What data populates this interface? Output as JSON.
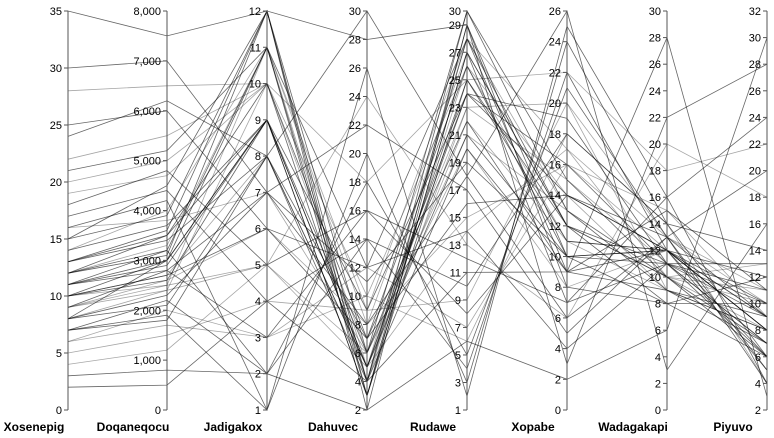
{
  "chart_data": {
    "type": "parallel-coordinates",
    "title": "",
    "line_color": "#000000",
    "axes": [
      {
        "name": "Xosenepig",
        "min": 0,
        "max": 35,
        "ticks": [
          0,
          5,
          10,
          15,
          20,
          25,
          30,
          35
        ],
        "tick_labels": [
          "0",
          "5",
          "10",
          "15",
          "20",
          "25",
          "30",
          "35"
        ],
        "label_side": "left"
      },
      {
        "name": "Doqaneqocu",
        "min": 0,
        "max": 8000,
        "ticks": [
          0,
          1000,
          2000,
          3000,
          4000,
          5000,
          6000,
          7000,
          8000
        ],
        "tick_labels": [
          "0",
          "1,000",
          "2,000",
          "3,000",
          "4,000",
          "5,000",
          "6,000",
          "7,000",
          "8,000"
        ],
        "label_side": "left"
      },
      {
        "name": "Jadigakox",
        "min": 1,
        "max": 12,
        "ticks": [
          1,
          2,
          3,
          4,
          5,
          6,
          7,
          8,
          9,
          10,
          11,
          12
        ],
        "tick_labels": [
          "1",
          "2",
          "3",
          "4",
          "5",
          "6",
          "7",
          "8",
          "9",
          "10",
          "11",
          "12"
        ],
        "label_side": "left"
      },
      {
        "name": "Dahuvec",
        "min": 2,
        "max": 30,
        "ticks": [
          2,
          4,
          6,
          8,
          10,
          12,
          14,
          16,
          18,
          20,
          22,
          24,
          26,
          28,
          30
        ],
        "tick_labels": [
          "2",
          "4",
          "6",
          "8",
          "10",
          "12",
          "14",
          "16",
          "18",
          "20",
          "22",
          "24",
          "26",
          "28",
          "30"
        ],
        "label_side": "left"
      },
      {
        "name": "Rudawe",
        "min": 1,
        "max": 30,
        "ticks": [
          1,
          3,
          5,
          7,
          9,
          11,
          13,
          15,
          17,
          19,
          21,
          23,
          25,
          27,
          29,
          30
        ],
        "tick_labels": [
          "1",
          "3",
          "5",
          "7",
          "9",
          "11",
          "13",
          "15",
          "17",
          "19",
          "21",
          "23",
          "25",
          "27",
          "29",
          "30"
        ],
        "label_side": "left"
      },
      {
        "name": "Xopabe",
        "min": 0,
        "max": 26,
        "ticks": [
          0,
          2,
          4,
          6,
          8,
          10,
          12,
          14,
          16,
          18,
          20,
          22,
          24,
          26
        ],
        "tick_labels": [
          "0",
          "2",
          "4",
          "6",
          "8",
          "10",
          "12",
          "14",
          "16",
          "18",
          "20",
          "22",
          "24",
          "26"
        ],
        "label_side": "left"
      },
      {
        "name": "Wadagakapi",
        "min": 0,
        "max": 30,
        "ticks": [
          0,
          2,
          4,
          6,
          8,
          10,
          12,
          14,
          16,
          18,
          20,
          22,
          24,
          26,
          28,
          30
        ],
        "tick_labels": [
          "0",
          "2",
          "4",
          "6",
          "8",
          "10",
          "12",
          "14",
          "16",
          "18",
          "20",
          "22",
          "24",
          "26",
          "28",
          "30"
        ],
        "label_side": "left"
      },
      {
        "name": "Piyuvo",
        "min": 2,
        "max": 32,
        "ticks": [
          2,
          4,
          6,
          8,
          10,
          12,
          14,
          16,
          18,
          20,
          22,
          24,
          26,
          28,
          30,
          32
        ],
        "tick_labels": [
          "2",
          "4",
          "6",
          "8",
          "10",
          "12",
          "14",
          "16",
          "18",
          "20",
          "22",
          "24",
          "26",
          "28",
          "30",
          "32"
        ],
        "label_side": "left"
      }
    ],
    "records": [
      [
        10,
        2500,
        5,
        6,
        20,
        8,
        12,
        8
      ],
      [
        8,
        3000,
        11,
        3,
        27,
        12,
        10,
        6
      ],
      [
        12,
        3500,
        9,
        5,
        24,
        16,
        11,
        10
      ],
      [
        6,
        2000,
        3,
        10,
        6,
        18,
        14,
        4
      ],
      [
        15,
        4500,
        12,
        2,
        29,
        10,
        8,
        12
      ],
      [
        9,
        2800,
        7,
        8,
        18,
        6,
        13,
        9
      ],
      [
        20,
        5000,
        10,
        4,
        26,
        14,
        9,
        7
      ],
      [
        11,
        3200,
        2,
        14,
        4,
        22,
        12,
        5
      ],
      [
        7,
        1800,
        8,
        7,
        22,
        9,
        15,
        11
      ],
      [
        14,
        4000,
        11,
        5,
        28,
        17,
        10,
        8
      ],
      [
        25,
        6000,
        6,
        12,
        14,
        4,
        11,
        13
      ],
      [
        10,
        2600,
        9,
        3,
        25,
        11,
        12,
        6
      ],
      [
        5,
        1500,
        4,
        9,
        9,
        20,
        13,
        10
      ],
      [
        13,
        3600,
        12,
        6,
        30,
        13,
        9,
        9
      ],
      [
        18,
        4800,
        5,
        16,
        12,
        7,
        16,
        4
      ],
      [
        9,
        2400,
        10,
        4,
        23,
        15,
        11,
        7
      ],
      [
        16,
        4200,
        1,
        20,
        3,
        24,
        14,
        14
      ],
      [
        8,
        2100,
        8,
        5,
        21,
        10,
        12,
        8
      ],
      [
        12,
        3300,
        11,
        8,
        27,
        12,
        10,
        11
      ],
      [
        30,
        7000,
        7,
        22,
        17,
        5,
        13,
        20
      ],
      [
        11,
        2900,
        9,
        6,
        24,
        19,
        11,
        6
      ],
      [
        6,
        1700,
        3,
        12,
        7,
        16,
        15,
        9
      ],
      [
        15,
        3900,
        12,
        3,
        29,
        8,
        8,
        10
      ],
      [
        10,
        2700,
        6,
        7,
        16,
        14,
        12,
        12
      ],
      [
        22,
        5500,
        10,
        10,
        26,
        11,
        9,
        7
      ],
      [
        7,
        2200,
        2,
        18,
        5,
        21,
        13,
        5
      ],
      [
        13,
        3400,
        8,
        4,
        20,
        9,
        12,
        8
      ],
      [
        9,
        2500,
        11,
        9,
        28,
        13,
        10,
        13
      ],
      [
        17,
        4400,
        4,
        14,
        10,
        18,
        14,
        6
      ],
      [
        10,
        3000,
        9,
        5,
        25,
        12,
        11,
        9
      ],
      [
        4,
        1200,
        5,
        24,
        13,
        6,
        20,
        18
      ],
      [
        12,
        3100,
        12,
        4,
        30,
        15,
        10,
        7
      ],
      [
        8,
        2300,
        7,
        11,
        19,
        10,
        12,
        10
      ],
      [
        19,
        4700,
        10,
        6,
        23,
        20,
        9,
        8
      ],
      [
        11,
        2800,
        3,
        16,
        8,
        14,
        13,
        4
      ],
      [
        14,
        3700,
        9,
        3,
        27,
        7,
        11,
        11
      ],
      [
        9,
        2600,
        6,
        8,
        15,
        16,
        12,
        9
      ],
      [
        21,
        5200,
        11,
        12,
        28,
        12,
        8,
        6
      ],
      [
        7,
        1900,
        1,
        26,
        2,
        25,
        16,
        24
      ],
      [
        10,
        2700,
        8,
        5,
        22,
        11,
        12,
        8
      ],
      [
        35,
        7500,
        12,
        28,
        29,
        3,
        22,
        28
      ],
      [
        2,
        500,
        4,
        4,
        11,
        9,
        28,
        3
      ],
      [
        28,
        6500,
        10,
        18,
        25,
        22,
        18,
        22
      ],
      [
        3,
        800,
        2,
        2,
        6,
        2,
        6,
        30
      ],
      [
        24,
        6200,
        8,
        30,
        18,
        26,
        3,
        16
      ],
      [
        16,
        3800,
        7,
        6,
        21,
        13,
        10,
        10
      ],
      [
        13,
        3500,
        10,
        7,
        26,
        10,
        11,
        7
      ],
      [
        11,
        3000,
        9,
        9,
        24,
        14,
        12,
        9
      ],
      [
        8,
        2400,
        5,
        5,
        14,
        17,
        13,
        11
      ],
      [
        12,
        3200,
        11,
        4,
        28,
        9,
        9,
        8
      ]
    ]
  }
}
